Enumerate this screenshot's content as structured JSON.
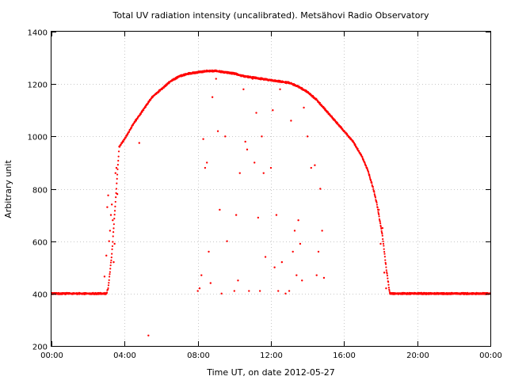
{
  "chart_data": {
    "type": "scatter",
    "title": "Total UV radiation intensity (uncalibrated). Metsähovi Radio Observatory",
    "xlabel": "Time UT, on date 2012-05-27",
    "ylabel": "Arbitrary unit",
    "xlim": [
      0,
      24
    ],
    "ylim": [
      200,
      1400
    ],
    "x_ticks": [
      {
        "value": 0,
        "label": "00:00"
      },
      {
        "value": 4,
        "label": "04:00"
      },
      {
        "value": 8,
        "label": "08:00"
      },
      {
        "value": 12,
        "label": "12:00"
      },
      {
        "value": 16,
        "label": "16:00"
      },
      {
        "value": 20,
        "label": "20:00"
      },
      {
        "value": 24,
        "label": "00:00"
      }
    ],
    "y_ticks": [
      {
        "value": 200,
        "label": "200"
      },
      {
        "value": 400,
        "label": "400"
      },
      {
        "value": 600,
        "label": "600"
      },
      {
        "value": 800,
        "label": "800"
      },
      {
        "value": 1000,
        "label": "1000"
      },
      {
        "value": 1200,
        "label": "1200"
      },
      {
        "value": 1400,
        "label": "1400"
      }
    ],
    "grid": true,
    "series_color": "#ff0000",
    "series": [
      {
        "envelope": {
          "x": [
            0,
            1,
            2,
            3.0,
            3.1,
            3.3,
            3.5,
            3.7,
            4.0,
            4.5,
            5.0,
            5.5,
            6.0,
            6.5,
            7.0,
            7.5,
            8.0,
            8.5,
            9.0,
            9.5,
            10.0,
            10.5,
            11.0,
            11.5,
            12.0,
            12.5,
            13.0,
            13.5,
            14.0,
            14.5,
            15.0,
            15.5,
            16.0,
            16.5,
            17.0,
            17.3,
            17.6,
            17.8,
            17.9,
            18.1,
            18.3,
            18.5,
            19,
            20,
            21,
            22,
            23,
            24
          ],
          "y": [
            400,
            400,
            400,
            400,
            420,
            550,
            750,
            960,
            990,
            1050,
            1100,
            1150,
            1180,
            1210,
            1230,
            1240,
            1245,
            1250,
            1250,
            1245,
            1240,
            1230,
            1225,
            1220,
            1215,
            1210,
            1205,
            1190,
            1170,
            1140,
            1100,
            1060,
            1020,
            980,
            920,
            870,
            800,
            740,
            700,
            620,
            500,
            400,
            400,
            400,
            400,
            400,
            400,
            400
          ]
        },
        "x": [
          2.9,
          3.0,
          3.05,
          3.1,
          3.15,
          3.2,
          3.25,
          3.3,
          3.35,
          3.4,
          3.45,
          3.5,
          3.55,
          3.6,
          4.8,
          5.3,
          8.0,
          8.1,
          8.2,
          8.3,
          8.4,
          8.5,
          8.6,
          8.7,
          8.8,
          9.0,
          9.1,
          9.2,
          9.3,
          9.5,
          9.6,
          10.0,
          10.1,
          10.2,
          10.3,
          10.5,
          10.6,
          10.7,
          10.8,
          11.0,
          11.1,
          11.2,
          11.3,
          11.4,
          11.5,
          11.6,
          11.7,
          12.0,
          12.1,
          12.2,
          12.3,
          12.4,
          12.5,
          12.6,
          12.8,
          13.0,
          13.1,
          13.2,
          13.3,
          13.4,
          13.5,
          13.6,
          13.7,
          13.8,
          14.0,
          14.2,
          14.4,
          14.5,
          14.6,
          14.7,
          14.8,
          14.9,
          17.9,
          18.0,
          18.1,
          18.2,
          18.3
        ],
        "y": [
          465,
          545,
          730,
          775,
          600,
          640,
          700,
          740,
          680,
          520,
          590,
          860,
          880,
          780,
          975,
          240,
          410,
          420,
          470,
          990,
          880,
          900,
          560,
          440,
          1150,
          1220,
          1020,
          720,
          400,
          1000,
          600,
          410,
          700,
          450,
          860,
          1180,
          980,
          950,
          410,
          1220,
          900,
          1090,
          690,
          410,
          1000,
          860,
          540,
          880,
          1100,
          500,
          700,
          410,
          1180,
          520,
          400,
          410,
          1060,
          560,
          640,
          470,
          680,
          590,
          450,
          1110,
          1000,
          880,
          890,
          470,
          560,
          800,
          640,
          460,
          720,
          590,
          650,
          480,
          420
        ]
      }
    ]
  }
}
